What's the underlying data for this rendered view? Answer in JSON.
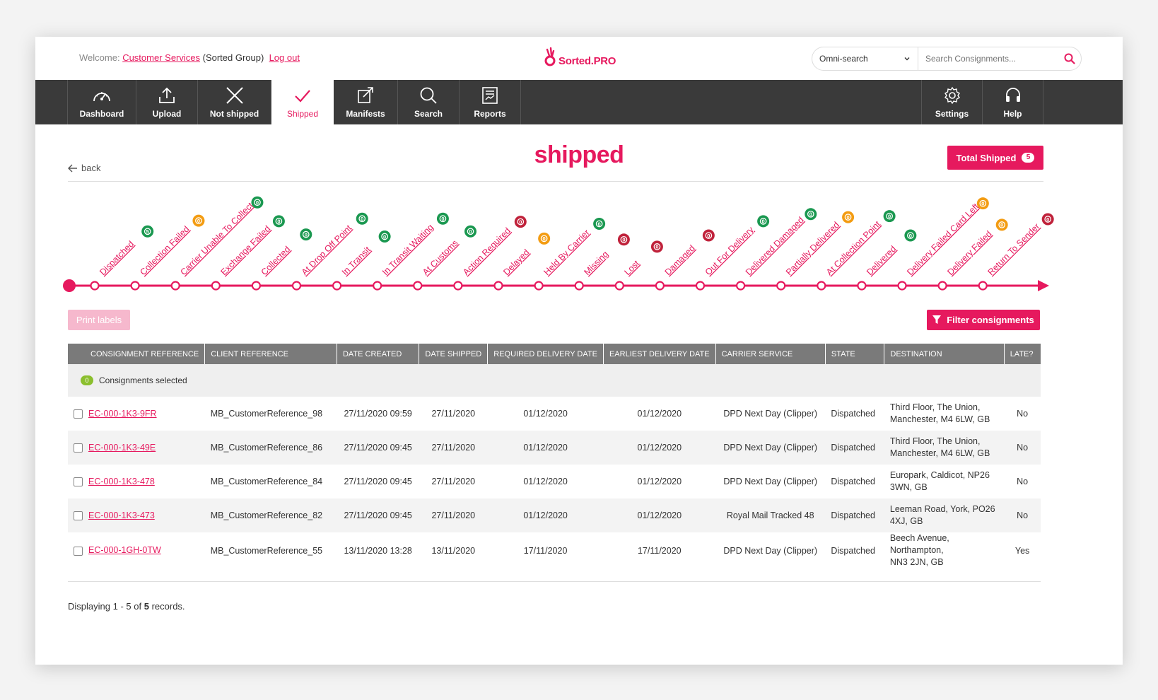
{
  "header": {
    "welcome_prefix": "Welcome:",
    "user": "Customer Services",
    "group": "(Sorted Group)",
    "logout": "Log out",
    "logo_text": "Sorted.PRO",
    "omni_label": "Omni-search",
    "search_placeholder": "Search Consignments..."
  },
  "nav": {
    "items": [
      {
        "label": "Dashboard",
        "icon": "dashboard-gauge-icon"
      },
      {
        "label": "Upload",
        "icon": "upload-icon"
      },
      {
        "label": "Not shipped",
        "icon": "close-x-icon"
      },
      {
        "label": "Shipped",
        "icon": "checkmark-icon",
        "active": true
      },
      {
        "label": "Manifests",
        "icon": "manifest-export-icon"
      },
      {
        "label": "Search",
        "icon": "search-icon"
      },
      {
        "label": "Reports",
        "icon": "reports-icon"
      }
    ],
    "right_items": [
      {
        "label": "Settings",
        "icon": "gear-icon"
      },
      {
        "label": "Help",
        "icon": "headset-icon"
      }
    ]
  },
  "page": {
    "title": "shipped",
    "back_label": "back",
    "total_label": "Total Shipped",
    "total_count": "5",
    "print_label": "Print labels",
    "filter_label": "Filter consignments"
  },
  "colors": {
    "accent": "#e6195e",
    "green": "#1a9850",
    "orange": "#f39c12",
    "red": "#c0223b",
    "nav_bg": "#3a3a3a"
  },
  "timeline": [
    {
      "label": "Dispatched",
      "count": "5",
      "color": "green"
    },
    {
      "label": "Collection Failed",
      "count": "0",
      "color": "orange"
    },
    {
      "label": "Carrier Unable To Collect",
      "count": "0",
      "color": "green"
    },
    {
      "label": "Exchange Failed",
      "count": "0",
      "color": "green"
    },
    {
      "label": "Collected",
      "count": "0",
      "color": "green"
    },
    {
      "label": "At Drop Off Point",
      "count": "0",
      "color": "green"
    },
    {
      "label": "In Transit",
      "count": "0",
      "color": "green"
    },
    {
      "label": "In Transit Waiting",
      "count": "0",
      "color": "green"
    },
    {
      "label": "At Customs",
      "count": "0",
      "color": "green"
    },
    {
      "label": "Action Required",
      "count": "0",
      "color": "red"
    },
    {
      "label": "Delayed",
      "count": "0",
      "color": "orange"
    },
    {
      "label": "Held By Carrier",
      "count": "0",
      "color": "green"
    },
    {
      "label": "Missing",
      "count": "0",
      "color": "red"
    },
    {
      "label": "Lost",
      "count": "0",
      "color": "red"
    },
    {
      "label": "Damaged",
      "count": "0",
      "color": "red"
    },
    {
      "label": "Out For Delivery",
      "count": "0",
      "color": "green"
    },
    {
      "label": "Delivered Damaged",
      "count": "0",
      "color": "green"
    },
    {
      "label": "Partially Delivered",
      "count": "0",
      "color": "orange"
    },
    {
      "label": "At Collection Point",
      "count": "0",
      "color": "green"
    },
    {
      "label": "Delivered",
      "count": "0",
      "color": "green"
    },
    {
      "label": "Delivery Failed Card Left",
      "count": "0",
      "color": "orange"
    },
    {
      "label": "Delivery Failed",
      "count": "0",
      "color": "orange"
    },
    {
      "label": "Return To Sender",
      "count": "0",
      "color": "red"
    }
  ],
  "table": {
    "headers": [
      "CONSIGNMENT REFERENCE",
      "CLIENT REFERENCE",
      "DATE CREATED",
      "DATE SHIPPED",
      "REQUIRED DELIVERY DATE",
      "EARLIEST DELIVERY DATE",
      "CARRIER SERVICE",
      "STATE",
      "DESTINATION",
      "LATE?"
    ],
    "selected_count": "0",
    "selected_label": "Consignments selected",
    "rows": [
      {
        "ref": "EC-000-1K3-9FR",
        "client": "MB_CustomerReference_98",
        "created": "27/11/2020 09:59",
        "shipped": "27/11/2020",
        "required": "01/12/2020",
        "earliest": "01/12/2020",
        "carrier": "DPD Next Day (Clipper)",
        "state": "Dispatched",
        "dest1": "Third Floor, The Union,",
        "dest2": "Manchester, M4 6LW, GB",
        "late": "No"
      },
      {
        "ref": "EC-000-1K3-49E",
        "client": "MB_CustomerReference_86",
        "created": "27/11/2020 09:45",
        "shipped": "27/11/2020",
        "required": "01/12/2020",
        "earliest": "01/12/2020",
        "carrier": "DPD Next Day (Clipper)",
        "state": "Dispatched",
        "dest1": "Third Floor, The Union,",
        "dest2": "Manchester, M4 6LW, GB",
        "late": "No"
      },
      {
        "ref": "EC-000-1K3-478",
        "client": "MB_CustomerReference_84",
        "created": "27/11/2020 09:45",
        "shipped": "27/11/2020",
        "required": "01/12/2020",
        "earliest": "01/12/2020",
        "carrier": "DPD Next Day (Clipper)",
        "state": "Dispatched",
        "dest1": "Europark, Caldicot, NP26",
        "dest2": "3WN, GB",
        "late": "No"
      },
      {
        "ref": "EC-000-1K3-473",
        "client": "MB_CustomerReference_82",
        "created": "27/11/2020 09:45",
        "shipped": "27/11/2020",
        "required": "01/12/2020",
        "earliest": "01/12/2020",
        "carrier": "Royal Mail Tracked 48",
        "state": "Dispatched",
        "dest1": "Leeman Road, York, PO26",
        "dest2": "4XJ, GB",
        "late": "No"
      },
      {
        "ref": "EC-000-1GH-0TW",
        "client": "MB_CustomerReference_55",
        "created": "13/11/2020 13:28",
        "shipped": "13/11/2020",
        "required": "17/11/2020",
        "earliest": "17/11/2020",
        "carrier": "DPD Next Day (Clipper)",
        "state": "Dispatched",
        "dest1": "Beech Avenue, Northampton,",
        "dest2": "NN3 2JN, GB",
        "late": "Yes"
      }
    ]
  },
  "footer": {
    "prefix": "Displaying",
    "range": "1 - 5",
    "of": "of",
    "total": "5",
    "suffix": "records."
  }
}
